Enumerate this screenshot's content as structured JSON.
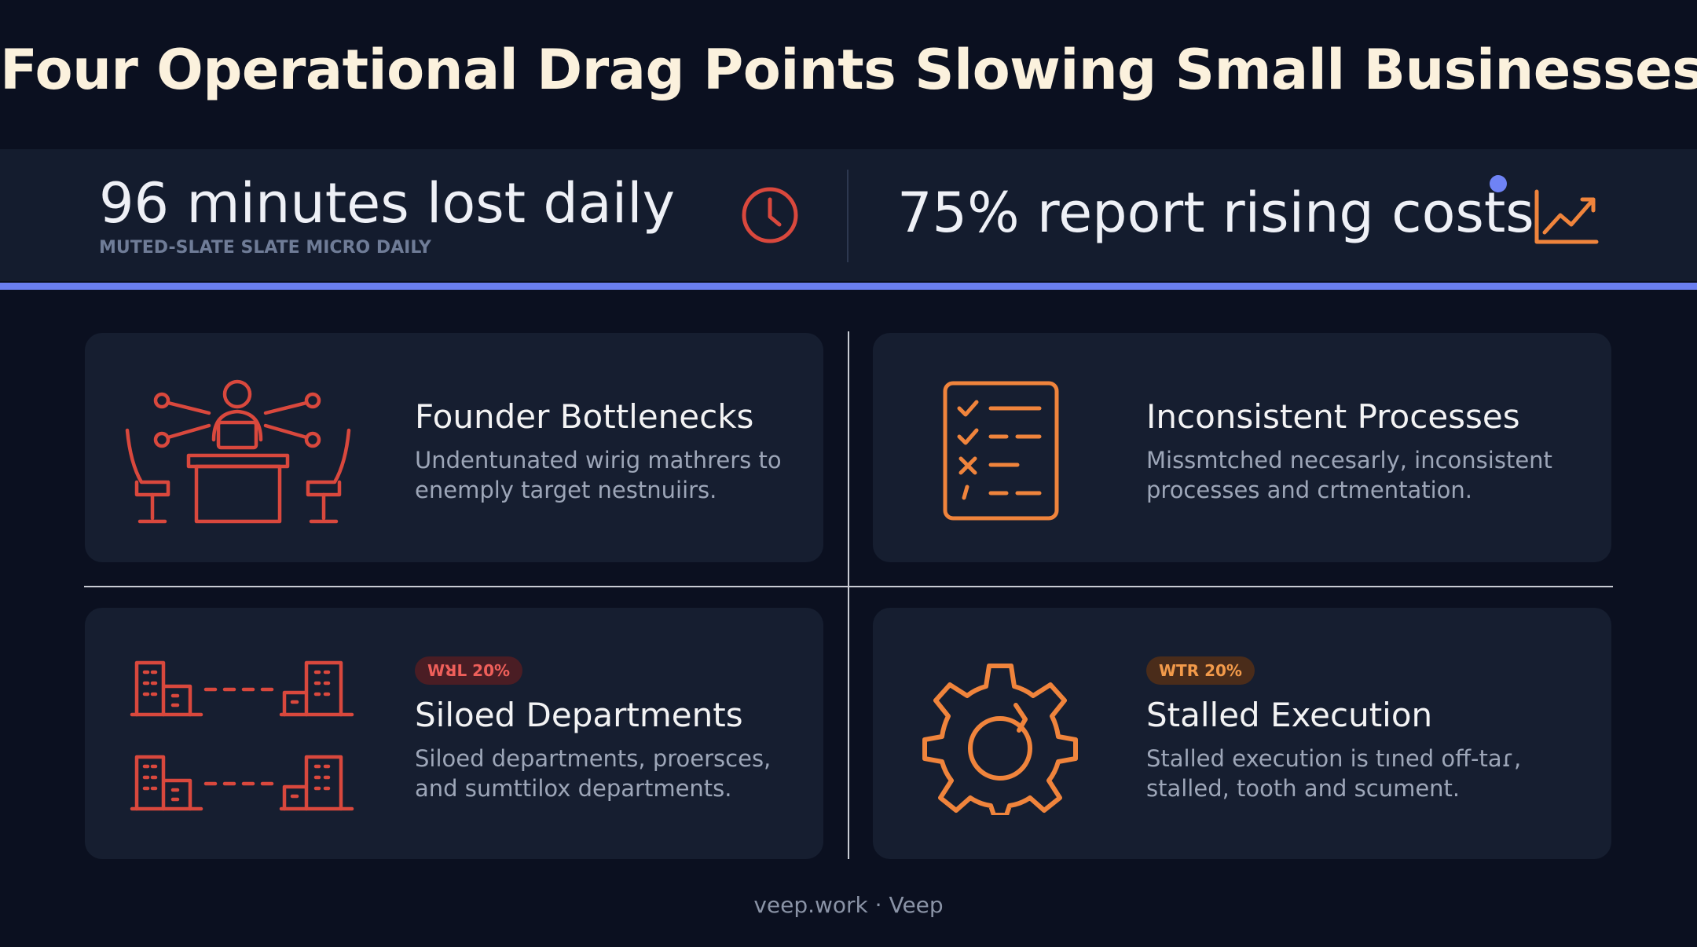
{
  "title": "Four Operational Drag Points Slowing Small Businesses",
  "stats": {
    "left": {
      "value": "96 minutes lost daily",
      "sublabel": "MUTED-SLATE SLATE MICRO DAILY",
      "icon": "clock-icon"
    },
    "right": {
      "value": "75% report rising costs",
      "icon": "trend-up-chart-icon"
    }
  },
  "cards": [
    {
      "title": "Founder Bottlenecks",
      "description": [
        "Undentunated wirig mathrers to",
        "enemply target nestnuiirs."
      ],
      "icon": "founder-desk-network-icon"
    },
    {
      "title": "Inconsistent Processes",
      "description": [
        "Missmtched necesarly, inconsistent",
        "processes and crtmentation."
      ],
      "icon": "checklist-icon"
    },
    {
      "badge": "WꓤL 20%",
      "title": "Siloed Departments",
      "description": [
        "Siloed departments, proersces,",
        "and sumttilox departments."
      ],
      "icon": "siloed-buildings-icon"
    },
    {
      "badge": "WTR 20%",
      "title": "Stalled Execution",
      "description": [
        "Stalled execution is tıned off-taɾ,",
        "stalled,  tooth and scument."
      ],
      "icon": "broken-gear-icon"
    }
  ],
  "footer": "veep.work · Veep",
  "colors": {
    "background": "#0b1020",
    "band": "#141c2e",
    "accent_blue": "#6b7ff0",
    "icon_red": "#d9483d",
    "icon_orange": "#f0843c",
    "card": "#161e30"
  }
}
